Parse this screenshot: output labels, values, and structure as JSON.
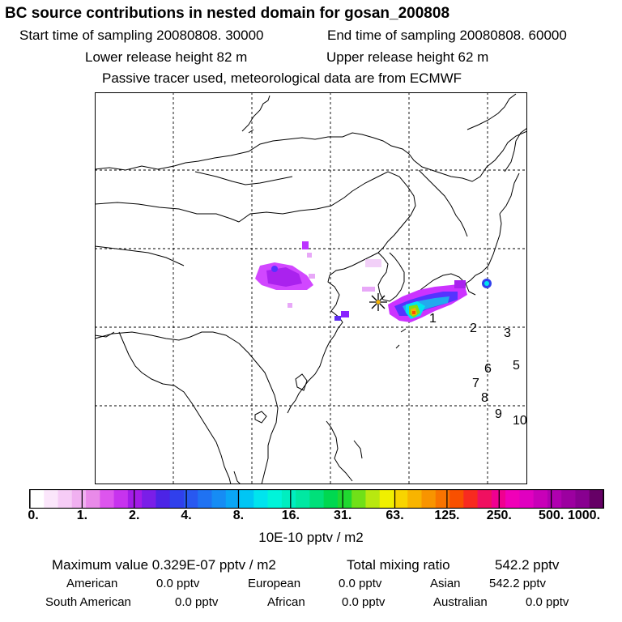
{
  "title": "BC  source contributions in nested domain for gosan_200808",
  "start_label": "Start time of sampling 20080808. 30000",
  "end_label": "End time of sampling 20080808. 60000",
  "lower_label": "Lower release height   82 m",
  "upper_label": "Upper release height   62 m",
  "tracer_note": "Passive tracer used, meteorological data are from ECMWF",
  "colorbar": {
    "ticks": [
      "0.",
      "1.",
      "2.",
      "4.",
      "8.",
      "16.",
      "31.",
      "63.",
      "125.",
      "250.",
      "500.",
      "1000."
    ],
    "unit": "10E-10 pptv / m2",
    "colors": [
      "#ffffff",
      "#fbe6fb",
      "#f6ccf6",
      "#f0b0f0",
      "#e98ae9",
      "#dd55ee",
      "#c733ee",
      "#a31ce8",
      "#7a1ee8",
      "#4c24e6",
      "#3040ec",
      "#2858f0",
      "#1f72f2",
      "#168cf4",
      "#0aa6f6",
      "#00c6f4",
      "#00e4ee",
      "#00f4da",
      "#00eec0",
      "#00e8a2",
      "#00e07a",
      "#00d850",
      "#20d830",
      "#70e018",
      "#b8e810",
      "#f0f000",
      "#f8d400",
      "#f8b400",
      "#f89400",
      "#f87400",
      "#f85000",
      "#f82a20",
      "#f01060",
      "#f00090",
      "#f000b8",
      "#e000c0",
      "#c800b8",
      "#b000b0",
      "#9c00a0",
      "#880090",
      "#660066"
    ]
  },
  "max_value_label": "Maximum value  0.329E-07 pptv / m2",
  "total_label": "Total mixing ratio",
  "total_value": "542.2 pptv",
  "regions": [
    {
      "name": "American",
      "value": "0.0 pptv"
    },
    {
      "name": "European",
      "value": "0.0 pptv"
    },
    {
      "name": "Asian",
      "value": "542.2 pptv"
    },
    {
      "name": "South American",
      "value": "0.0 pptv"
    },
    {
      "name": "African",
      "value": "0.0 pptv"
    },
    {
      "name": "Australian",
      "value": "0.0 pptv"
    }
  ],
  "map_labels": [
    "1",
    "2",
    "3",
    "5",
    "6",
    "7",
    "8",
    "9",
    "10"
  ]
}
